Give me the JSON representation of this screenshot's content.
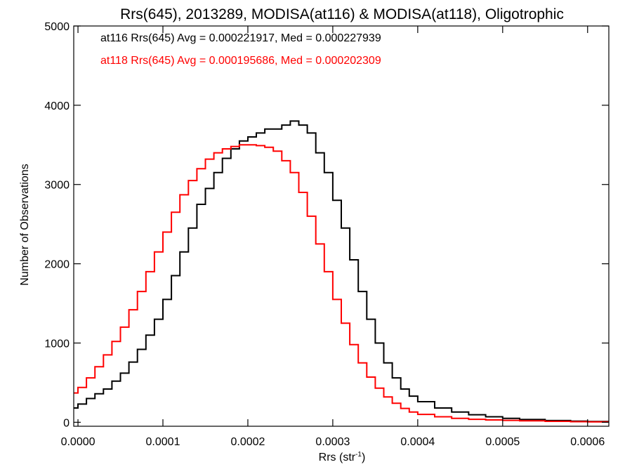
{
  "chart_data": {
    "type": "line",
    "title": "Rrs(645), 2013289, MODISA(at116) & MODISA(at118), Oligotrophic",
    "xlabel": "Rrs (str",
    "xlabel_sup": "-1",
    "xlabel_close": ")",
    "ylabel": "Number of Observations",
    "xlim": [
      -5e-06,
      0.000625
    ],
    "ylim": [
      -50,
      5000
    ],
    "x_ticks": [
      {
        "value": 0.0,
        "label": "0.0000"
      },
      {
        "value": 0.0001,
        "label": "0.0001"
      },
      {
        "value": 0.0002,
        "label": "0.0002"
      },
      {
        "value": 0.0003,
        "label": "0.0003"
      },
      {
        "value": 0.0004,
        "label": "0.0004"
      },
      {
        "value": 0.0005,
        "label": "0.0005"
      },
      {
        "value": 0.0006,
        "label": "0.0006"
      }
    ],
    "y_ticks": [
      {
        "value": 0,
        "label": "0"
      },
      {
        "value": 1000,
        "label": "1000"
      },
      {
        "value": 2000,
        "label": "2000"
      },
      {
        "value": 3000,
        "label": "3000"
      },
      {
        "value": 4000,
        "label": "4000"
      },
      {
        "value": 5000,
        "label": "5000"
      }
    ],
    "grid": false,
    "legend_position": "top-left",
    "series": [
      {
        "name": "at116",
        "color": "#000000",
        "annotation": "at116 Rrs(645) Avg = 0.000221917, Med = 0.000227939",
        "x": [
          -5e-06,
          0.0,
          1e-05,
          2e-05,
          3e-05,
          4e-05,
          5e-05,
          6e-05,
          7e-05,
          8e-05,
          9e-05,
          0.0001,
          0.00011,
          0.00012,
          0.00013,
          0.00014,
          0.00015,
          0.00016,
          0.00017,
          0.00018,
          0.00019,
          0.0002,
          0.00021,
          0.00022,
          0.00023,
          0.00024,
          0.00025,
          0.00026,
          0.00027,
          0.00028,
          0.00029,
          0.0003,
          0.00031,
          0.00032,
          0.00033,
          0.00034,
          0.00035,
          0.00036,
          0.00037,
          0.00038,
          0.00039,
          0.0004,
          0.00042,
          0.00044,
          0.00046,
          0.00048,
          0.0005,
          0.00052,
          0.00055,
          0.00058,
          0.0006,
          0.000625
        ],
        "y": [
          180,
          230,
          300,
          360,
          420,
          520,
          620,
          760,
          920,
          1100,
          1300,
          1550,
          1850,
          2150,
          2450,
          2750,
          2950,
          3150,
          3330,
          3450,
          3550,
          3600,
          3650,
          3700,
          3700,
          3750,
          3800,
          3750,
          3650,
          3400,
          3150,
          2800,
          2450,
          2050,
          1650,
          1300,
          1000,
          750,
          560,
          420,
          330,
          260,
          180,
          130,
          95,
          70,
          50,
          35,
          22,
          14,
          10,
          6
        ]
      },
      {
        "name": "at118",
        "color": "#ff0000",
        "annotation": "at118 Rrs(645) Avg = 0.000195686, Med = 0.000202309",
        "x": [
          -5e-06,
          0.0,
          1e-05,
          2e-05,
          3e-05,
          4e-05,
          5e-05,
          6e-05,
          7e-05,
          8e-05,
          9e-05,
          0.0001,
          0.00011,
          0.00012,
          0.00013,
          0.00014,
          0.00015,
          0.00016,
          0.00017,
          0.00018,
          0.00019,
          0.0002,
          0.00021,
          0.00022,
          0.00023,
          0.00024,
          0.00025,
          0.00026,
          0.00027,
          0.00028,
          0.00029,
          0.0003,
          0.00031,
          0.00032,
          0.00033,
          0.00034,
          0.00035,
          0.00036,
          0.00037,
          0.00038,
          0.00039,
          0.0004,
          0.00042,
          0.00044,
          0.00046,
          0.00048,
          0.0005,
          0.00052,
          0.00055,
          0.00058,
          0.0006,
          0.000625
        ],
        "y": [
          370,
          440,
          560,
          700,
          850,
          1020,
          1200,
          1420,
          1650,
          1900,
          2150,
          2400,
          2650,
          2870,
          3050,
          3200,
          3320,
          3400,
          3450,
          3480,
          3500,
          3500,
          3490,
          3470,
          3420,
          3300,
          3150,
          2900,
          2600,
          2250,
          1900,
          1550,
          1250,
          980,
          750,
          570,
          430,
          320,
          240,
          175,
          130,
          100,
          70,
          50,
          38,
          30,
          24,
          18,
          12,
          8,
          5,
          3
        ]
      }
    ]
  }
}
